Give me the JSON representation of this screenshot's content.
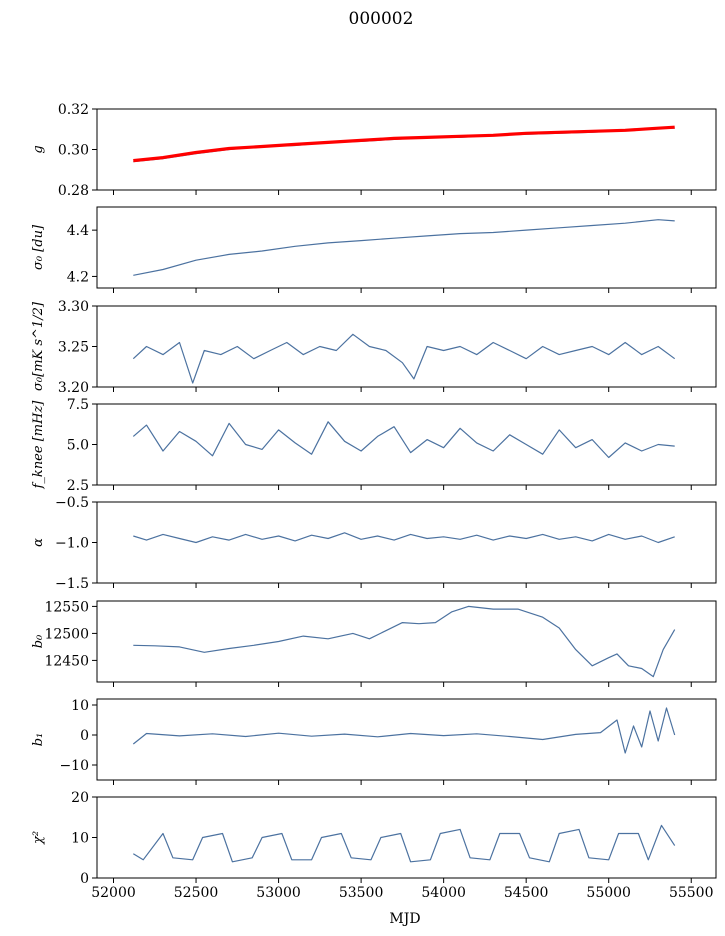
{
  "figure": {
    "title": "000002",
    "xlabel": "MJD"
  },
  "colors": {
    "series": "#4c72a0",
    "model": "#ff0000",
    "axis": "#000000",
    "background": "#ffffff"
  },
  "chart_data": [
    {
      "type": "line",
      "ylabel": "g",
      "xlim": [
        51900,
        55650
      ],
      "ylim": [
        0.28,
        0.32
      ],
      "yticks": [
        0.28,
        0.3,
        0.32
      ],
      "ytick_labels": [
        "0.28",
        "0.30",
        "0.32"
      ],
      "series": [
        {
          "color": "#4c72a0",
          "x": [
            52120,
            52300,
            52500,
            52700,
            52900,
            53100,
            53300,
            53500,
            53700,
            53900,
            54100,
            54300,
            54500,
            54700,
            54900,
            55100,
            55300,
            55400
          ],
          "y": [
            0.294,
            0.2955,
            0.298,
            0.3,
            0.3015,
            0.302,
            0.3035,
            0.304,
            0.305,
            0.306,
            0.306,
            0.307,
            0.3075,
            0.308,
            0.3085,
            0.3095,
            0.3105,
            0.3105
          ]
        },
        {
          "color": "#ff0000",
          "x": [
            52120,
            52300,
            52500,
            52700,
            52900,
            53100,
            53300,
            53500,
            53700,
            53900,
            54100,
            54300,
            54500,
            54700,
            54900,
            55100,
            55300,
            55400
          ],
          "y": [
            0.2945,
            0.296,
            0.2985,
            0.3005,
            0.3015,
            0.3025,
            0.3035,
            0.3045,
            0.3055,
            0.306,
            0.3065,
            0.307,
            0.308,
            0.3085,
            0.309,
            0.3095,
            0.3105,
            0.311
          ]
        }
      ]
    },
    {
      "type": "line",
      "ylabel": "σ₀ [du]",
      "xlim": [
        51900,
        55650
      ],
      "ylim": [
        4.15,
        4.5
      ],
      "yticks": [
        4.2,
        4.4
      ],
      "ytick_labels": [
        "4.2",
        "4.4"
      ],
      "series": [
        {
          "color": "#4c72a0",
          "x": [
            52120,
            52300,
            52500,
            52700,
            52900,
            53100,
            53300,
            53500,
            53700,
            53900,
            54100,
            54300,
            54500,
            54700,
            54900,
            55100,
            55300,
            55400
          ],
          "y": [
            4.205,
            4.23,
            4.27,
            4.295,
            4.31,
            4.33,
            4.345,
            4.355,
            4.365,
            4.375,
            4.385,
            4.39,
            4.4,
            4.41,
            4.42,
            4.43,
            4.445,
            4.44
          ]
        }
      ]
    },
    {
      "type": "line",
      "ylabel": "σ₀[mK s^1/2]",
      "xlim": [
        51900,
        55650
      ],
      "ylim": [
        3.2,
        3.3
      ],
      "yticks": [
        3.2,
        3.25,
        3.3
      ],
      "ytick_labels": [
        "3.20",
        "3.25",
        "3.30"
      ],
      "series": [
        {
          "color": "#4c72a0",
          "x": [
            52120,
            52200,
            52300,
            52400,
            52480,
            52550,
            52650,
            52750,
            52850,
            52950,
            53050,
            53150,
            53250,
            53350,
            53450,
            53550,
            53650,
            53750,
            53820,
            53900,
            54000,
            54100,
            54200,
            54300,
            54400,
            54500,
            54600,
            54700,
            54800,
            54900,
            55000,
            55100,
            55200,
            55300,
            55400
          ],
          "y": [
            3.235,
            3.25,
            3.24,
            3.255,
            3.205,
            3.245,
            3.24,
            3.25,
            3.235,
            3.245,
            3.255,
            3.24,
            3.25,
            3.245,
            3.265,
            3.25,
            3.245,
            3.23,
            3.21,
            3.25,
            3.245,
            3.25,
            3.24,
            3.255,
            3.245,
            3.235,
            3.25,
            3.24,
            3.245,
            3.25,
            3.24,
            3.255,
            3.24,
            3.25,
            3.235
          ]
        }
      ]
    },
    {
      "type": "line",
      "ylabel": "f_knee [mHz]",
      "xlim": [
        51900,
        55650
      ],
      "ylim": [
        2.5,
        7.5
      ],
      "yticks": [
        2.5,
        5.0,
        7.5
      ],
      "ytick_labels": [
        "2.5",
        "5.0",
        "7.5"
      ],
      "series": [
        {
          "color": "#4c72a0",
          "x": [
            52120,
            52200,
            52300,
            52400,
            52500,
            52600,
            52700,
            52800,
            52900,
            53000,
            53100,
            53200,
            53300,
            53400,
            53500,
            53600,
            53700,
            53800,
            53900,
            54000,
            54100,
            54200,
            54300,
            54400,
            54500,
            54600,
            54700,
            54800,
            54900,
            55000,
            55100,
            55200,
            55300,
            55400
          ],
          "y": [
            5.5,
            6.2,
            4.6,
            5.8,
            5.2,
            4.3,
            6.3,
            5.0,
            4.7,
            5.9,
            5.1,
            4.4,
            6.4,
            5.2,
            4.6,
            5.5,
            6.1,
            4.5,
            5.3,
            4.8,
            6.0,
            5.1,
            4.6,
            5.6,
            5.0,
            4.4,
            5.9,
            4.8,
            5.3,
            4.2,
            5.1,
            4.6,
            5.0,
            4.9
          ]
        }
      ]
    },
    {
      "type": "line",
      "ylabel": "α",
      "xlim": [
        51900,
        55650
      ],
      "ylim": [
        -1.5,
        -0.5
      ],
      "yticks": [
        -1.5,
        -1.0,
        -0.5
      ],
      "ytick_labels": [
        "−1.5",
        "−1.0",
        "−0.5"
      ],
      "series": [
        {
          "color": "#4c72a0",
          "x": [
            52120,
            52200,
            52300,
            52400,
            52500,
            52600,
            52700,
            52800,
            52900,
            53000,
            53100,
            53200,
            53300,
            53400,
            53500,
            53600,
            53700,
            53800,
            53900,
            54000,
            54100,
            54200,
            54300,
            54400,
            54500,
            54600,
            54700,
            54800,
            54900,
            55000,
            55100,
            55200,
            55300,
            55400
          ],
          "y": [
            -0.92,
            -0.97,
            -0.9,
            -0.95,
            -1.0,
            -0.93,
            -0.97,
            -0.9,
            -0.96,
            -0.92,
            -0.98,
            -0.91,
            -0.95,
            -0.88,
            -0.96,
            -0.92,
            -0.97,
            -0.9,
            -0.95,
            -0.93,
            -0.96,
            -0.91,
            -0.97,
            -0.92,
            -0.95,
            -0.9,
            -0.96,
            -0.93,
            -0.98,
            -0.9,
            -0.96,
            -0.92,
            -1.0,
            -0.93
          ]
        }
      ]
    },
    {
      "type": "line",
      "ylabel": "b₀",
      "xlim": [
        51900,
        55650
      ],
      "ylim": [
        12410,
        12560
      ],
      "yticks": [
        12450,
        12500,
        12550
      ],
      "ytick_labels": [
        "12450",
        "12500",
        "12550"
      ],
      "series": [
        {
          "color": "#4c72a0",
          "x": [
            52120,
            52250,
            52400,
            52550,
            52700,
            52850,
            53000,
            53150,
            53300,
            53450,
            53550,
            53650,
            53750,
            53850,
            53950,
            54050,
            54150,
            54300,
            54450,
            54600,
            54700,
            54800,
            54900,
            55000,
            55050,
            55120,
            55200,
            55270,
            55330,
            55400
          ],
          "y": [
            12478,
            12477,
            12475,
            12465,
            12472,
            12478,
            12485,
            12495,
            12490,
            12500,
            12490,
            12505,
            12520,
            12518,
            12520,
            12540,
            12550,
            12545,
            12545,
            12530,
            12510,
            12470,
            12440,
            12455,
            12462,
            12440,
            12435,
            12420,
            12470,
            12507
          ]
        }
      ]
    },
    {
      "type": "line",
      "ylabel": "b₁",
      "xlim": [
        51900,
        55650
      ],
      "ylim": [
        -15,
        12
      ],
      "yticks": [
        -10,
        0,
        10
      ],
      "ytick_labels": [
        "−10",
        "0",
        "10"
      ],
      "series": [
        {
          "color": "#4c72a0",
          "x": [
            52120,
            52200,
            52400,
            52600,
            52800,
            53000,
            53200,
            53400,
            53600,
            53800,
            54000,
            54200,
            54400,
            54600,
            54800,
            54950,
            55050,
            55100,
            55150,
            55200,
            55250,
            55300,
            55350,
            55400
          ],
          "y": [
            -3,
            0.5,
            -0.3,
            0.4,
            -0.5,
            0.6,
            -0.4,
            0.3,
            -0.6,
            0.5,
            -0.2,
            0.4,
            -0.5,
            -1.5,
            0.2,
            0.8,
            5,
            -6,
            3,
            -4,
            8,
            -2,
            9,
            0
          ]
        }
      ]
    },
    {
      "type": "line",
      "ylabel": "χ²",
      "xlim": [
        51900,
        55650
      ],
      "ylim": [
        0,
        20
      ],
      "yticks": [
        0,
        10,
        20
      ],
      "ytick_labels": [
        "0",
        "10",
        "20"
      ],
      "xticks": [
        52000,
        52500,
        53000,
        53500,
        54000,
        54500,
        55000,
        55500
      ],
      "xtick_labels": [
        "52000",
        "52500",
        "53000",
        "53500",
        "54000",
        "54500",
        "55000",
        "55500"
      ],
      "series": [
        {
          "color": "#4c72a0",
          "x": [
            52120,
            52180,
            52300,
            52360,
            52480,
            52540,
            52660,
            52720,
            52840,
            52900,
            53020,
            53080,
            53200,
            53260,
            53380,
            53440,
            53560,
            53620,
            53740,
            53800,
            53920,
            53980,
            54100,
            54160,
            54280,
            54340,
            54460,
            54520,
            54640,
            54700,
            54820,
            54880,
            55000,
            55060,
            55180,
            55240,
            55320,
            55400
          ],
          "y": [
            6,
            4.5,
            11,
            5,
            4.5,
            10,
            11,
            4,
            5,
            10,
            11,
            4.5,
            4.5,
            10,
            11,
            5,
            4.5,
            10,
            11,
            4,
            4.5,
            11,
            12,
            5,
            4.5,
            11,
            11,
            5,
            4,
            11,
            12,
            5,
            4.5,
            11,
            11,
            4.5,
            13,
            8
          ]
        }
      ]
    }
  ]
}
